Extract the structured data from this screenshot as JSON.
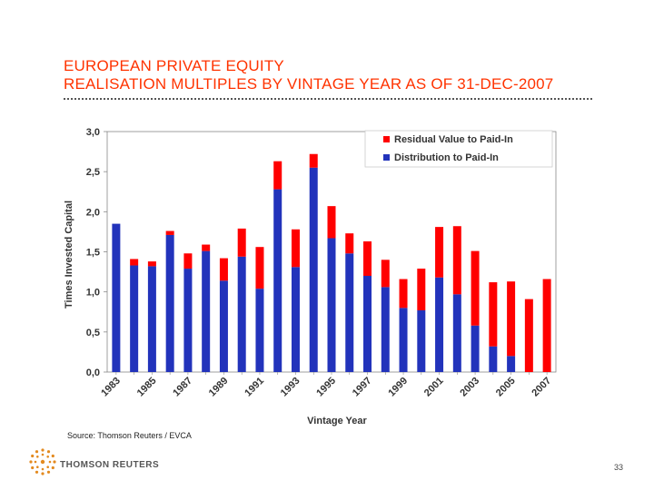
{
  "slide": {
    "title_line1": "EUROPEAN PRIVATE EQUITY",
    "title_line2": "REALISATION MULTIPLES BY VINTAGE YEAR AS OF 31-DEC-2007",
    "source": "Source: Thomson Reuters / EVCA",
    "brand": "THOMSON REUTERS",
    "page_number": "33"
  },
  "colors": {
    "title": "#ff3300",
    "residual": "#ff0000",
    "distribution": "#2233bb",
    "axis": "#888888"
  },
  "chart_data": {
    "type": "bar",
    "stacked": true,
    "title": "",
    "xlabel": "Vintage Year",
    "ylabel": "Times Invested Capital",
    "ylim": [
      0,
      3
    ],
    "yticks": [
      "0,0",
      "0,5",
      "1,0",
      "1,5",
      "2,0",
      "2,5",
      "3,0"
    ],
    "ytick_values": [
      0,
      0.5,
      1,
      1.5,
      2,
      2.5,
      3
    ],
    "grid": false,
    "legend_position": "top-right",
    "categories": [
      "1983",
      "1984",
      "1985",
      "1986",
      "1987",
      "1988",
      "1989",
      "1990",
      "1991",
      "1992",
      "1993",
      "1994",
      "1995",
      "1996",
      "1997",
      "1998",
      "1999",
      "2000",
      "2001",
      "2002",
      "2003",
      "2004",
      "2005",
      "2006",
      "2007"
    ],
    "xtick_labels": [
      "1983",
      "1985",
      "1987",
      "1989",
      "1991",
      "1993",
      "1995",
      "1997",
      "1999",
      "2001",
      "2003",
      "2005",
      "2007"
    ],
    "series": [
      {
        "name": "Distribution to Paid-In",
        "color": "#2233bb",
        "values": [
          1.85,
          1.33,
          1.32,
          1.71,
          1.29,
          1.51,
          1.14,
          1.44,
          1.04,
          2.28,
          1.31,
          2.55,
          1.67,
          1.48,
          1.2,
          1.06,
          0.8,
          0.77,
          1.18,
          0.97,
          0.58,
          0.32,
          0.2,
          0.0,
          0.0
        ]
      },
      {
        "name": "Residual Value to Paid-In",
        "color": "#ff0000",
        "values": [
          0.0,
          0.08,
          0.06,
          0.05,
          0.19,
          0.08,
          0.28,
          0.35,
          0.52,
          0.35,
          0.47,
          0.17,
          0.4,
          0.25,
          0.43,
          0.34,
          0.36,
          0.52,
          0.63,
          0.85,
          0.93,
          0.8,
          0.93,
          0.91,
          1.16
        ]
      }
    ],
    "legend": [
      "Residual Value to Paid-In",
      "Distribution to Paid-In"
    ]
  }
}
